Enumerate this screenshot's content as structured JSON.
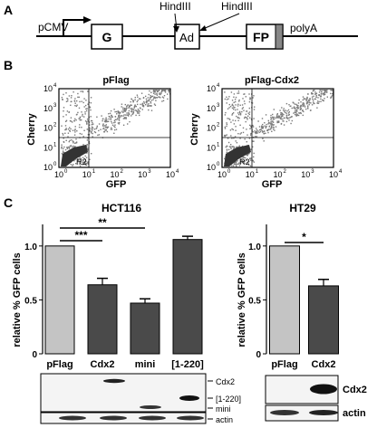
{
  "panel_a": {
    "label": "A",
    "promoter": "pCMV",
    "box_g": "G",
    "box_ad": "Ad",
    "box_fp": "FP",
    "polya": "polyA",
    "site_left": "HindIII",
    "site_right": "HindIII"
  },
  "panel_b": {
    "label": "B",
    "plots": [
      {
        "title": "pFlag",
        "xlabel": "GFP",
        "ylabel": "Cherry",
        "gate": "R2"
      },
      {
        "title": "pFlag-Cdx2",
        "xlabel": "GFP",
        "ylabel": "Cherry",
        "gate": "R2"
      }
    ],
    "x_ticks": [
      "10",
      "10",
      "10",
      "10",
      "10"
    ],
    "x_exps": [
      "0",
      "1",
      "2",
      "3",
      "4"
    ],
    "y_ticks": [
      "10",
      "10",
      "10",
      "10",
      "10"
    ],
    "y_exps": [
      "0",
      "1",
      "2",
      "3",
      "4"
    ]
  },
  "panel_c": {
    "label": "C",
    "blot_left": {
      "labels": [
        "Cdx2",
        "[1-220]",
        "mini",
        "actin"
      ]
    },
    "blot_right": {
      "labels": [
        "Cdx2",
        "actin"
      ]
    }
  },
  "colors": {
    "light_bar": "#c4c4c4",
    "dark_bar": "#4a4a4a",
    "dots": "#7a7a7a",
    "fp_stripe": "#888888"
  },
  "chart_data": [
    {
      "type": "bar",
      "title": "HCT116",
      "categories": [
        "pFlag",
        "Cdx2",
        "mini",
        "[1-220]"
      ],
      "values": [
        1.0,
        0.64,
        0.47,
        1.06
      ],
      "errors": [
        0.0,
        0.06,
        0.04,
        0.03
      ],
      "bar_colors": [
        "#c4c4c4",
        "#4a4a4a",
        "#4a4a4a",
        "#4a4a4a"
      ],
      "ylabel": "relative % GFP cells",
      "ylim": [
        0,
        1.2
      ],
      "yticks": [
        "0",
        "0.5",
        "1.0"
      ],
      "significance": [
        {
          "pair": [
            "pFlag",
            "Cdx2"
          ],
          "label": "***"
        },
        {
          "pair": [
            "pFlag",
            "mini"
          ],
          "label": "**"
        }
      ]
    },
    {
      "type": "bar",
      "title": "HT29",
      "categories": [
        "pFlag",
        "Cdx2"
      ],
      "values": [
        1.0,
        0.63
      ],
      "errors": [
        0.0,
        0.06
      ],
      "bar_colors": [
        "#c4c4c4",
        "#4a4a4a"
      ],
      "ylabel": "relative % GFP cells",
      "ylim": [
        0,
        1.2
      ],
      "yticks": [
        "0",
        "0.5",
        "1.0"
      ],
      "significance": [
        {
          "pair": [
            "pFlag",
            "Cdx2"
          ],
          "label": "*"
        }
      ]
    }
  ]
}
